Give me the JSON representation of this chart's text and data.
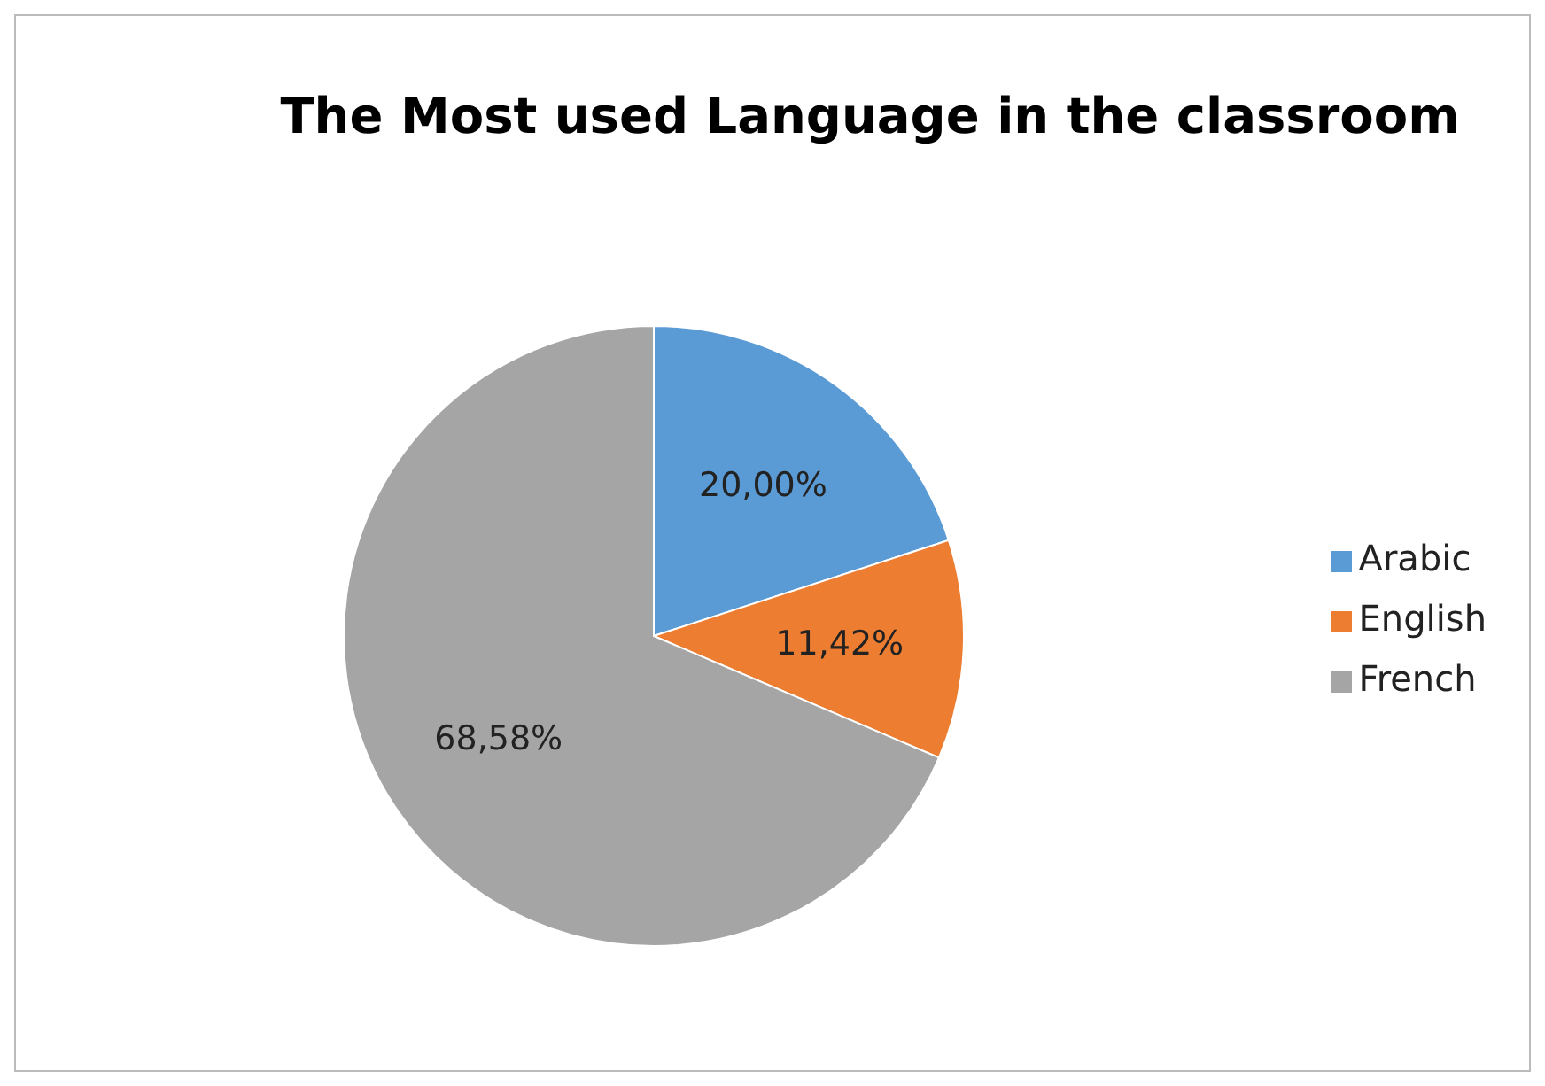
{
  "chart_data": {
    "type": "pie",
    "title": "The Most used Language in the classroom",
    "categories": [
      "Arabic",
      "English",
      "French"
    ],
    "values": [
      20.0,
      11.42,
      68.58
    ],
    "value_labels": [
      "20,00%",
      "11,42%",
      "68,58%"
    ],
    "colors": [
      "#5b9bd5",
      "#ed7d31",
      "#a5a5a5"
    ],
    "legend": "right"
  }
}
